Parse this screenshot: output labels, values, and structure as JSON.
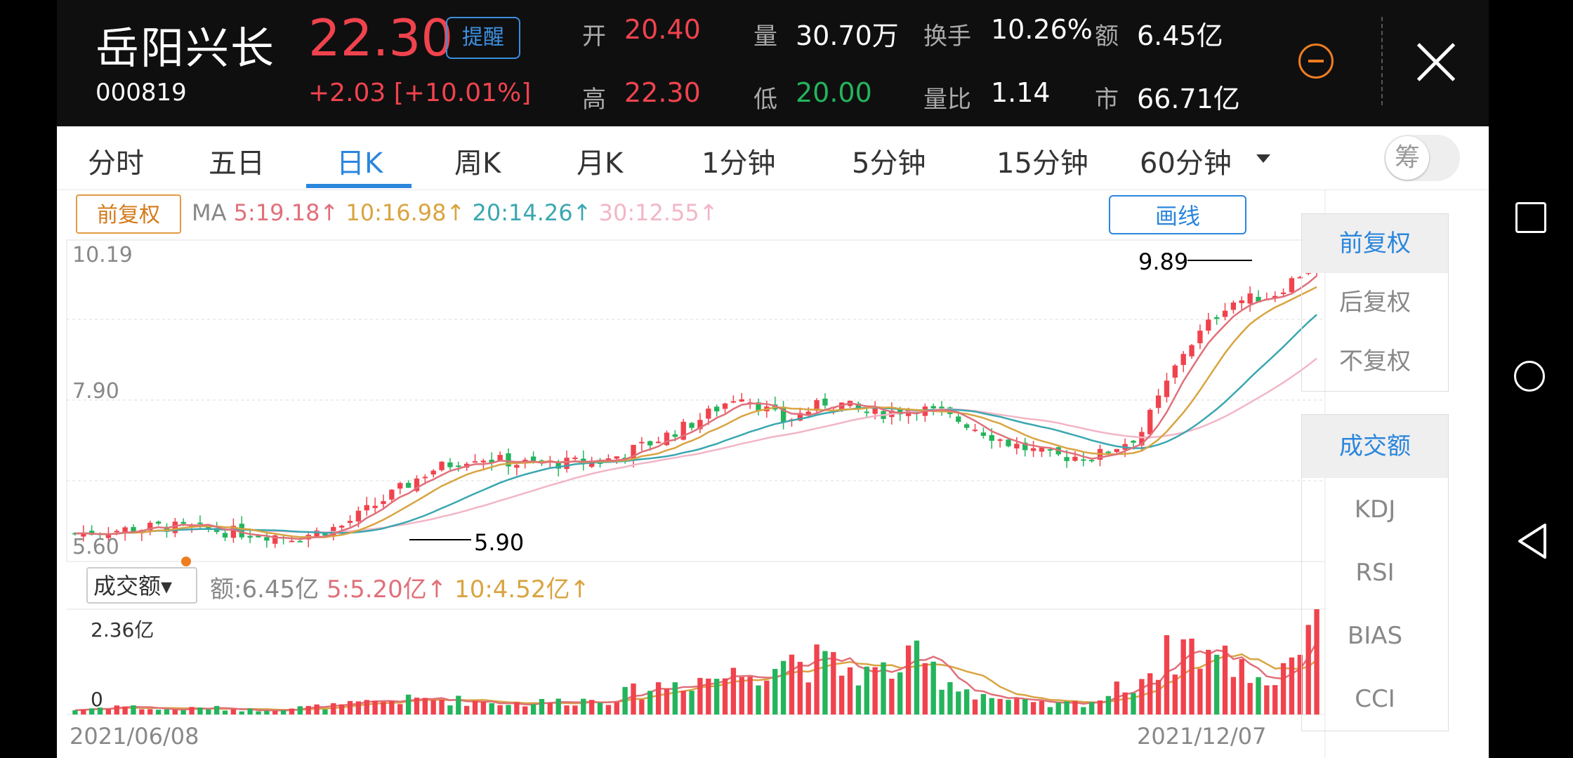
{
  "stock": {
    "name": "岳阳兴长",
    "code": "000819",
    "price": "22.30",
    "change": "+2.03",
    "change_pct": "[+10.01%]",
    "remind_label": "提醒"
  },
  "stats": {
    "open_label": "开",
    "open": "20.40",
    "high_label": "高",
    "high": "22.30",
    "vol_label": "量",
    "vol": "30.70万",
    "low_label": "低",
    "low": "20.00",
    "turnover_label": "换手",
    "turnover": "10.26%",
    "vratio_label": "量比",
    "vratio": "1.14",
    "amount_label": "额",
    "amount": "6.45亿",
    "mcap_label": "市",
    "mcap": "66.71亿"
  },
  "tabs": [
    "分时",
    "五日",
    "日K",
    "周K",
    "月K",
    "1分钟",
    "5分钟",
    "15分钟",
    "60分钟"
  ],
  "active_tab": "日K",
  "chip_toggle": "筹",
  "kline": {
    "adjust_button": "前复权",
    "ma_prefix": "MA",
    "ma5": "5:19.18↑",
    "ma10": "10:16.98↑",
    "ma20": "20:14.26↑",
    "ma30": "30:12.55↑",
    "draw_button": "画线",
    "y_top": "10.19",
    "y_mid": "7.90",
    "y_bottom": "5.60",
    "high_marker": "9.89",
    "low_marker": "5.90"
  },
  "volume": {
    "indicator_button": "成交额▾",
    "amount": "额:6.45亿",
    "ma5": "5:5.20亿↑",
    "ma10": "10:4.52亿↑",
    "y_top": "2.36亿",
    "y_zero": "0"
  },
  "dates": {
    "start": "2021/06/08",
    "end": "2021/12/07"
  },
  "right_panel": {
    "adjust": [
      "前复权",
      "后复权",
      "不复权"
    ],
    "indicators": [
      "成交额",
      "KDJ",
      "RSI",
      "BIAS",
      "CCI"
    ]
  },
  "colors": {
    "up": "#f0434d",
    "down": "#24b45c",
    "accent": "#2b86dc",
    "ma5": "#e0707a",
    "ma10": "#d9a441",
    "ma20": "#3aa7b0",
    "ma30": "#f2b6c6"
  },
  "chart_data": {
    "type": "candlestick",
    "title": "岳阳兴长 日K",
    "x_range": [
      "2021/06/08",
      "2021/12/07"
    ],
    "price_ylim": [
      5.6,
      10.19
    ],
    "price_gridlines": [
      10.19,
      7.9,
      5.6
    ],
    "annotated_high": 9.89,
    "annotated_low": 5.9,
    "close_trend_approx": [
      6.0,
      6.05,
      6.1,
      6.05,
      6.0,
      5.95,
      6.1,
      6.5,
      6.9,
      7.1,
      7.0,
      7.0,
      7.05,
      7.3,
      7.6,
      8.0,
      7.6,
      7.9,
      7.7,
      7.8,
      7.6,
      7.3,
      7.1,
      7.1,
      7.4,
      8.6,
      9.3,
      9.4,
      9.89
    ],
    "volume_ylim": [
      0,
      2.36
    ],
    "volume_unit": "亿",
    "volume_trend_approx": [
      0.1,
      0.2,
      0.1,
      0.15,
      0.1,
      0.15,
      0.2,
      0.3,
      0.35,
      0.3,
      0.25,
      0.3,
      0.35,
      0.6,
      0.8,
      0.9,
      1.3,
      1.1,
      0.9,
      1.2,
      0.6,
      0.3,
      0.2,
      0.3,
      0.8,
      1.6,
      1.2,
      0.7,
      2.36
    ]
  }
}
